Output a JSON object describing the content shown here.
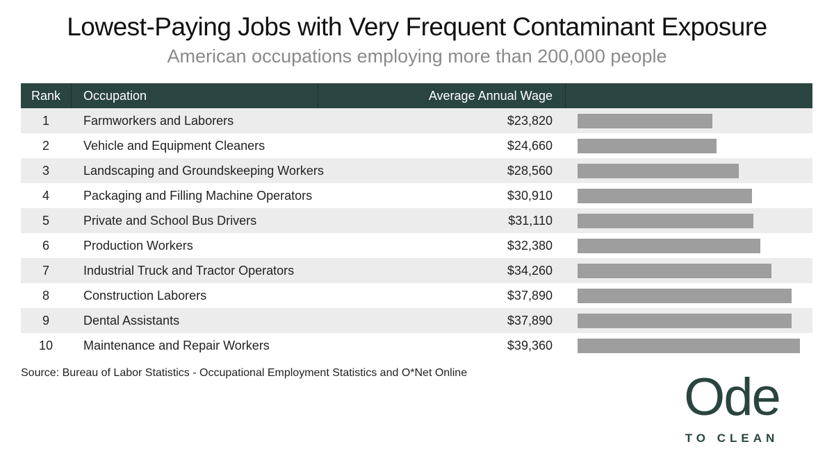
{
  "title": "Lowest-Paying Jobs with Very Frequent Contaminant Exposure",
  "subtitle": "American occupations employing more than 200,000 people",
  "table": {
    "headers": {
      "rank": "Rank",
      "occupation": "Occupation",
      "wage": "Average Annual Wage",
      "bar": ""
    },
    "rows": [
      {
        "rank": "1",
        "occupation": "Farmworkers and Laborers",
        "wage": "$23,820"
      },
      {
        "rank": "2",
        "occupation": "Vehicle and Equipment Cleaners",
        "wage": "$24,660"
      },
      {
        "rank": "3",
        "occupation": "Landscaping and Groundskeeping Workers",
        "wage": "$28,560"
      },
      {
        "rank": "4",
        "occupation": "Packaging and Filling Machine Operators",
        "wage": "$30,910"
      },
      {
        "rank": "5",
        "occupation": "Private and School Bus Drivers",
        "wage": "$31,110"
      },
      {
        "rank": "6",
        "occupation": "Production Workers",
        "wage": "$32,380"
      },
      {
        "rank": "7",
        "occupation": "Industrial Truck and Tractor Operators",
        "wage": "$34,260"
      },
      {
        "rank": "8",
        "occupation": "Construction Laborers",
        "wage": "$37,890"
      },
      {
        "rank": "9",
        "occupation": "Dental Assistants",
        "wage": "$37,890"
      },
      {
        "rank": "10",
        "occupation": "Maintenance and Repair Workers",
        "wage": "$39,360"
      }
    ]
  },
  "chart_data": {
    "type": "bar",
    "orientation": "horizontal",
    "categories": [
      "Farmworkers and Laborers",
      "Vehicle and Equipment Cleaners",
      "Landscaping and Groundskeeping Workers",
      "Packaging and Filling Machine Operators",
      "Private and School Bus Drivers",
      "Production Workers",
      "Industrial Truck and Tractor Operators",
      "Construction Laborers",
      "Dental Assistants",
      "Maintenance and Repair Workers"
    ],
    "values": [
      23820,
      24660,
      28560,
      30910,
      31110,
      32380,
      34260,
      37890,
      37890,
      39360
    ],
    "xlim": [
      0,
      39360
    ],
    "bar_color": "#9e9e9e",
    "grid": false
  },
  "source": "Source: Bureau of Labor Statistics - Occupational Employment Statistics and O*Net Online",
  "logo": {
    "word": "Ode",
    "sub": "TO CLEAN"
  },
  "colors": {
    "header_bg": "#2a4540",
    "alt_row": "#ececec",
    "brand": "#2a4540"
  }
}
